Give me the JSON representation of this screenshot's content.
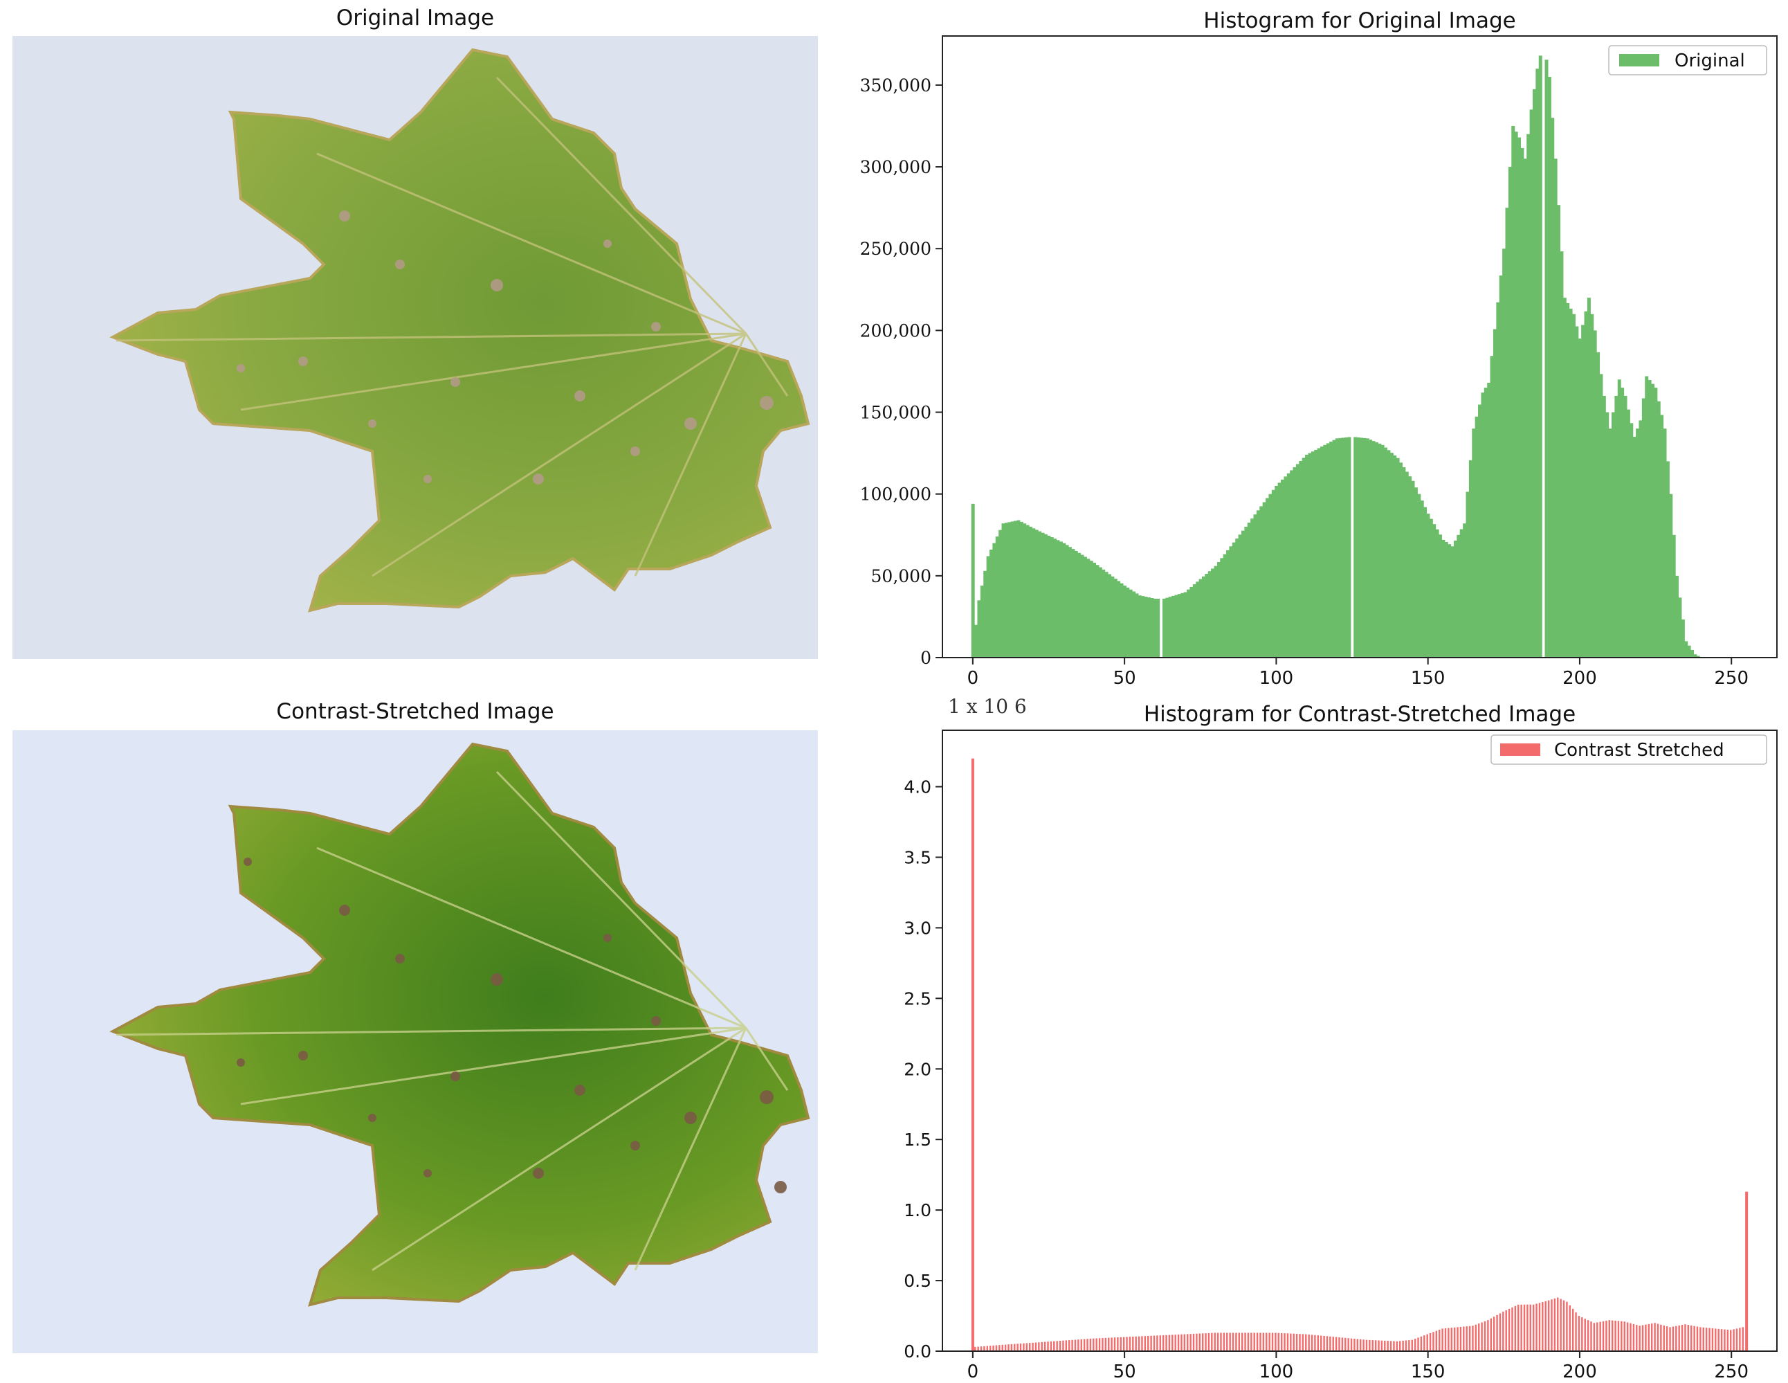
{
  "panels": {
    "original_image_title": "Original Image",
    "stretched_image_title": "Contrast-Stretched Image"
  },
  "colors": {
    "background": "#dfe6f1",
    "leaf_original": "#8aa942",
    "leaf_stretched": "#6a9a25",
    "hist_original": "#6cbd6a",
    "hist_stretched": "#f36b6b"
  },
  "chart_data": [
    {
      "type": "bar",
      "title": "Histogram for Original Image",
      "legend": [
        "Original"
      ],
      "legend_position": "top-right",
      "xlim": [
        -10,
        265
      ],
      "ylim": [
        0,
        380000
      ],
      "xticks": [
        0,
        50,
        100,
        150,
        200,
        250
      ],
      "yticks": [
        0,
        50000,
        100000,
        150000,
        200000,
        250000,
        300000,
        350000
      ],
      "ytick_labels": [
        "0",
        "50,000",
        "100,000",
        "150,000",
        "200,000",
        "250,000",
        "300,000",
        "350,000"
      ],
      "series": [
        {
          "name": "Original",
          "profile_x": [
            0,
            1,
            2,
            5,
            10,
            15,
            20,
            30,
            40,
            50,
            55,
            60,
            63,
            70,
            80,
            90,
            100,
            110,
            120,
            125,
            130,
            135,
            140,
            145,
            150,
            155,
            158,
            162,
            165,
            168,
            170,
            175,
            178,
            180,
            182,
            184,
            186,
            188,
            190,
            192,
            195,
            198,
            200,
            203,
            205,
            208,
            210,
            213,
            215,
            218,
            220,
            222,
            225,
            228,
            230,
            232,
            235,
            238,
            240,
            255
          ],
          "profile_y": [
            94000,
            20000,
            35000,
            62000,
            82000,
            84000,
            79000,
            70000,
            58000,
            44000,
            38000,
            36000,
            36000,
            40000,
            56000,
            80000,
            105000,
            124000,
            134000,
            135000,
            134000,
            130000,
            122000,
            108000,
            88000,
            72000,
            68000,
            82000,
            140000,
            162000,
            168000,
            250000,
            325000,
            318000,
            305000,
            335000,
            360000,
            376000,
            355000,
            305000,
            220000,
            210000,
            195000,
            220000,
            200000,
            160000,
            140000,
            170000,
            160000,
            135000,
            145000,
            172000,
            165000,
            140000,
            100000,
            50000,
            10000,
            2000,
            0,
            0
          ],
          "gaps_at": [
            62,
            125,
            188
          ]
        }
      ]
    },
    {
      "type": "bar",
      "title": "Histogram for Contrast-Stretched Image",
      "scale_label": "1 x 10 6",
      "legend": [
        "Contrast Stretched"
      ],
      "legend_position": "top-right",
      "xlim": [
        -10,
        265
      ],
      "ylim": [
        0,
        4.4
      ],
      "xticks": [
        0,
        50,
        100,
        150,
        200,
        250
      ],
      "yticks": [
        0.0,
        0.5,
        1.0,
        1.5,
        2.0,
        2.5,
        3.0,
        3.5,
        4.0
      ],
      "ytick_labels": [
        "0.0",
        "0.5",
        "1.0",
        "1.5",
        "2.0",
        "2.5",
        "3.0",
        "3.5",
        "4.0"
      ],
      "series": [
        {
          "name": "Contrast Stretched",
          "spikes": [
            {
              "x": 0,
              "y": 4.2
            },
            {
              "x": 255,
              "y": 1.13
            }
          ],
          "profile_x": [
            1,
            10,
            20,
            30,
            40,
            50,
            60,
            70,
            80,
            90,
            100,
            110,
            120,
            130,
            140,
            145,
            150,
            155,
            160,
            165,
            170,
            175,
            180,
            185,
            190,
            193,
            196,
            200,
            205,
            210,
            215,
            220,
            225,
            230,
            235,
            240,
            245,
            250,
            254
          ],
          "profile_y": [
            0.03,
            0.045,
            0.06,
            0.075,
            0.09,
            0.1,
            0.11,
            0.12,
            0.13,
            0.13,
            0.13,
            0.12,
            0.1,
            0.08,
            0.07,
            0.08,
            0.12,
            0.16,
            0.17,
            0.18,
            0.22,
            0.28,
            0.33,
            0.33,
            0.36,
            0.38,
            0.35,
            0.25,
            0.2,
            0.22,
            0.21,
            0.18,
            0.2,
            0.17,
            0.19,
            0.17,
            0.16,
            0.15,
            0.17
          ]
        }
      ]
    }
  ]
}
